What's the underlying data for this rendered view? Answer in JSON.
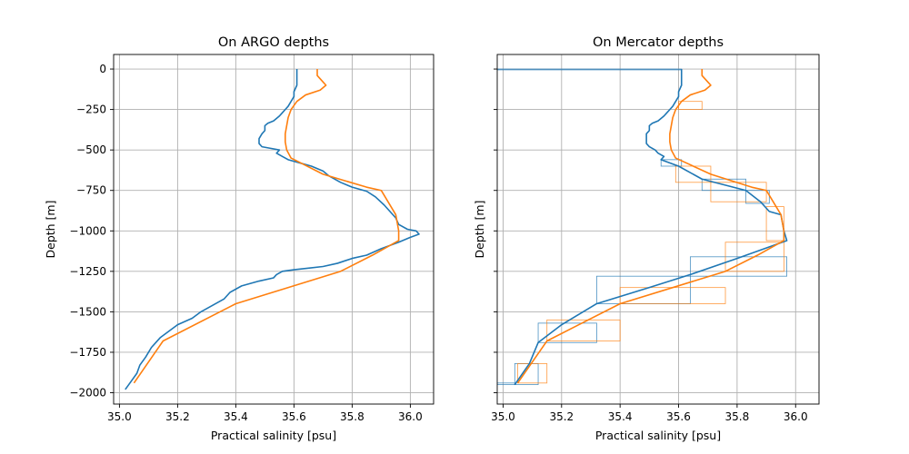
{
  "chart_data": [
    {
      "type": "line",
      "title": "On ARGO depths",
      "xlabel": "Practical salinity [psu]",
      "ylabel": "Depth [m]",
      "xlim": [
        34.98,
        36.08
      ],
      "ylim": [
        -2070,
        90
      ],
      "xticks": [
        "35.0",
        "35.2",
        "35.4",
        "35.6",
        "35.8",
        "36.0"
      ],
      "yticks": [
        "0",
        "−250",
        "−500",
        "−750",
        "−1000",
        "−1250",
        "−1500",
        "−1750",
        "−2000"
      ],
      "grid": true,
      "colors": [
        "#1f77b4",
        "#ff7f0e"
      ],
      "series": [
        {
          "points": [
            [
              35.61,
              0
            ],
            [
              35.61,
              -40
            ],
            [
              35.61,
              -80
            ],
            [
              35.61,
              -100
            ],
            [
              35.6,
              -140
            ],
            [
              35.6,
              -170
            ],
            [
              35.59,
              -200
            ],
            [
              35.58,
              -230
            ],
            [
              35.57,
              -250
            ],
            [
              35.56,
              -270
            ],
            [
              35.55,
              -290
            ],
            [
              35.53,
              -320
            ],
            [
              35.51,
              -335
            ],
            [
              35.5,
              -350
            ],
            [
              35.5,
              -380
            ],
            [
              35.49,
              -400
            ],
            [
              35.48,
              -430
            ],
            [
              35.48,
              -460
            ],
            [
              35.49,
              -480
            ],
            [
              35.52,
              -490
            ],
            [
              35.55,
              -500
            ],
            [
              35.54,
              -520
            ],
            [
              35.56,
              -540
            ],
            [
              35.58,
              -560
            ],
            [
              35.62,
              -580
            ],
            [
              35.66,
              -600
            ],
            [
              35.7,
              -630
            ],
            [
              35.72,
              -660
            ],
            [
              35.76,
              -700
            ],
            [
              35.8,
              -730
            ],
            [
              35.85,
              -755
            ],
            [
              35.88,
              -790
            ],
            [
              35.91,
              -840
            ],
            [
              35.93,
              -880
            ],
            [
              35.95,
              -920
            ],
            [
              35.96,
              -960
            ],
            [
              35.99,
              -990
            ],
            [
              36.02,
              -1000
            ],
            [
              36.03,
              -1020
            ],
            [
              36.0,
              -1040
            ],
            [
              35.96,
              -1070
            ],
            [
              35.9,
              -1110
            ],
            [
              35.85,
              -1150
            ],
            [
              35.8,
              -1170
            ],
            [
              35.75,
              -1200
            ],
            [
              35.7,
              -1220
            ],
            [
              35.65,
              -1230
            ],
            [
              35.6,
              -1240
            ],
            [
              35.56,
              -1250
            ],
            [
              35.54,
              -1270
            ],
            [
              35.53,
              -1290
            ],
            [
              35.48,
              -1310
            ],
            [
              35.42,
              -1340
            ],
            [
              35.38,
              -1380
            ],
            [
              35.36,
              -1420
            ],
            [
              35.32,
              -1460
            ],
            [
              35.28,
              -1500
            ],
            [
              35.25,
              -1540
            ],
            [
              35.2,
              -1580
            ],
            [
              35.17,
              -1620
            ],
            [
              35.14,
              -1660
            ],
            [
              35.11,
              -1720
            ],
            [
              35.09,
              -1780
            ],
            [
              35.07,
              -1830
            ],
            [
              35.06,
              -1880
            ],
            [
              35.04,
              -1930
            ],
            [
              35.02,
              -1980
            ]
          ]
        },
        {
          "points": [
            [
              35.68,
              0
            ],
            [
              35.68,
              -40
            ],
            [
              35.7,
              -80
            ],
            [
              35.71,
              -100
            ],
            [
              35.69,
              -130
            ],
            [
              35.64,
              -160
            ],
            [
              35.61,
              -200
            ],
            [
              35.59,
              -250
            ],
            [
              35.58,
              -300
            ],
            [
              35.575,
              -350
            ],
            [
              35.57,
              -400
            ],
            [
              35.57,
              -450
            ],
            [
              35.575,
              -500
            ],
            [
              35.59,
              -550
            ],
            [
              35.7,
              -650
            ],
            [
              35.85,
              -730
            ],
            [
              35.9,
              -750
            ],
            [
              35.95,
              -900
            ],
            [
              35.96,
              -1000
            ],
            [
              35.96,
              -1060
            ],
            [
              35.87,
              -1150
            ],
            [
              35.76,
              -1250
            ],
            [
              35.4,
              -1450
            ],
            [
              35.15,
              -1680
            ],
            [
              35.05,
              -1940
            ]
          ]
        }
      ]
    },
    {
      "type": "line",
      "title": "On Mercator depths",
      "xlabel": "Practical salinity [psu]",
      "ylabel": "Depth [m]",
      "xlim": [
        34.98,
        36.08
      ],
      "ylim": [
        -2070,
        90
      ],
      "xticks": [
        "35.0",
        "35.2",
        "35.4",
        "35.6",
        "35.8",
        "36.0"
      ],
      "yticks": [
        "0",
        "−250",
        "−500",
        "−750",
        "−1000",
        "−1250",
        "−1500",
        "−1750",
        "−2000"
      ],
      "grid": true,
      "colors": [
        "#1f77b4",
        "#ff7f0e"
      ],
      "series": [
        {
          "points": [
            [
              35.61,
              0
            ],
            [
              35.61,
              -40
            ],
            [
              35.61,
              -80
            ],
            [
              35.61,
              -100
            ],
            [
              35.6,
              -140
            ],
            [
              35.6,
              -170
            ],
            [
              35.59,
              -200
            ],
            [
              35.58,
              -230
            ],
            [
              35.57,
              -250
            ],
            [
              35.56,
              -270
            ],
            [
              35.55,
              -290
            ],
            [
              35.53,
              -320
            ],
            [
              35.51,
              -335
            ],
            [
              35.5,
              -350
            ],
            [
              35.5,
              -380
            ],
            [
              35.49,
              -400
            ],
            [
              35.49,
              -430
            ],
            [
              35.49,
              -460
            ],
            [
              35.5,
              -480
            ],
            [
              35.52,
              -500
            ],
            [
              35.53,
              -520
            ],
            [
              35.55,
              -540
            ],
            [
              35.54,
              -560
            ],
            [
              35.6,
              -600
            ],
            [
              35.68,
              -680
            ],
            [
              35.83,
              -750
            ],
            [
              35.88,
              -820
            ],
            [
              35.91,
              -880
            ],
            [
              35.95,
              -900
            ],
            [
              35.96,
              -1000
            ],
            [
              35.97,
              -1060
            ],
            [
              35.8,
              -1170
            ],
            [
              35.64,
              -1270
            ],
            [
              35.5,
              -1350
            ],
            [
              35.32,
              -1450
            ],
            [
              35.2,
              -1580
            ],
            [
              35.12,
              -1690
            ],
            [
              35.09,
              -1820
            ],
            [
              35.04,
              -1950
            ]
          ]
        },
        {
          "points": [
            [
              35.68,
              0
            ],
            [
              35.68,
              -40
            ],
            [
              35.7,
              -80
            ],
            [
              35.71,
              -100
            ],
            [
              35.69,
              -130
            ],
            [
              35.64,
              -160
            ],
            [
              35.61,
              -200
            ],
            [
              35.59,
              -250
            ],
            [
              35.58,
              -300
            ],
            [
              35.575,
              -350
            ],
            [
              35.57,
              -400
            ],
            [
              35.57,
              -450
            ],
            [
              35.575,
              -500
            ],
            [
              35.59,
              -550
            ],
            [
              35.71,
              -650
            ],
            [
              35.85,
              -730
            ],
            [
              35.9,
              -750
            ],
            [
              35.95,
              -900
            ],
            [
              35.96,
              -1000
            ],
            [
              35.96,
              -1060
            ],
            [
              35.87,
              -1150
            ],
            [
              35.76,
              -1250
            ],
            [
              35.4,
              -1450
            ],
            [
              35.15,
              -1680
            ],
            [
              35.05,
              -1940
            ]
          ]
        }
      ],
      "boxes_note": "",
      "boxes": [
        {
          "series": 0,
          "x": [
            34.98,
            35.61
          ],
          "y": [
            -5,
            0
          ]
        },
        {
          "series": 0,
          "x": [
            35.54,
            35.61
          ],
          "y": [
            -560,
            -600
          ]
        },
        {
          "series": 0,
          "x": [
            35.68,
            35.83
          ],
          "y": [
            -680,
            -750
          ]
        },
        {
          "series": 0,
          "x": [
            35.83,
            35.91
          ],
          "y": [
            -750,
            -830
          ]
        },
        {
          "series": 0,
          "x": [
            35.64,
            35.97
          ],
          "y": [
            -1160,
            -1280
          ]
        },
        {
          "series": 0,
          "x": [
            35.32,
            35.64
          ],
          "y": [
            -1280,
            -1450
          ]
        },
        {
          "series": 0,
          "x": [
            35.12,
            35.32
          ],
          "y": [
            -1570,
            -1690
          ]
        },
        {
          "series": 0,
          "x": [
            35.04,
            35.12
          ],
          "y": [
            -1820,
            -1950
          ]
        },
        {
          "series": 0,
          "x": [
            34.98,
            35.04
          ],
          "y": [
            -1940,
            -1950
          ]
        },
        {
          "series": 1,
          "x": [
            35.6,
            35.68
          ],
          "y": [
            -200,
            -250
          ]
        },
        {
          "series": 1,
          "x": [
            35.59,
            35.71
          ],
          "y": [
            -600,
            -700
          ]
        },
        {
          "series": 1,
          "x": [
            35.71,
            35.9
          ],
          "y": [
            -700,
            -820
          ]
        },
        {
          "series": 1,
          "x": [
            35.9,
            35.96
          ],
          "y": [
            -850,
            -1060
          ]
        },
        {
          "series": 1,
          "x": [
            35.76,
            35.96
          ],
          "y": [
            -1070,
            -1250
          ]
        },
        {
          "series": 1,
          "x": [
            35.4,
            35.76
          ],
          "y": [
            -1350,
            -1450
          ]
        },
        {
          "series": 1,
          "x": [
            35.15,
            35.4
          ],
          "y": [
            -1550,
            -1680
          ]
        },
        {
          "series": 1,
          "x": [
            35.05,
            35.15
          ],
          "y": [
            -1820,
            -1940
          ]
        }
      ]
    }
  ]
}
